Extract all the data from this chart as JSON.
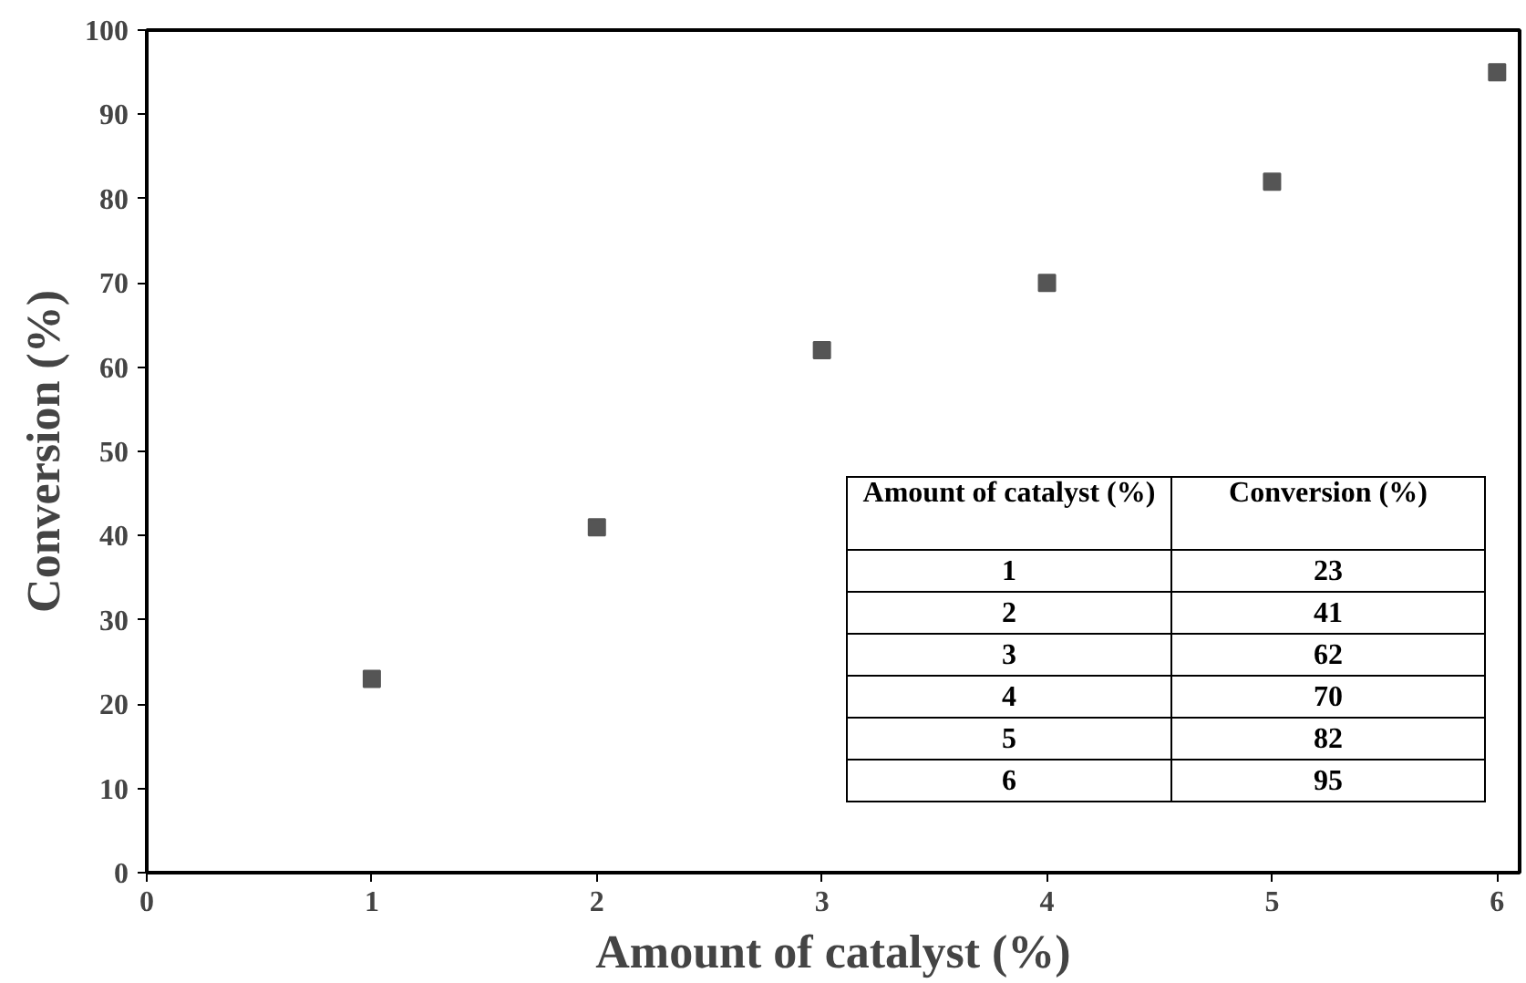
{
  "chart_data": {
    "type": "scatter",
    "xlabel": "Amount of catalyst (%)",
    "ylabel": "Conversion (%)",
    "x": [
      1,
      2,
      3,
      4,
      5,
      6
    ],
    "values": [
      23,
      41,
      62,
      70,
      82,
      95
    ],
    "color": "#555555",
    "marker": "square",
    "xlim": [
      0,
      6.1
    ],
    "ylim": [
      0,
      100
    ],
    "xticks": [
      0,
      1,
      2,
      3,
      4,
      5,
      6
    ],
    "yticks": [
      0,
      10,
      20,
      30,
      40,
      50,
      60,
      70,
      80,
      90,
      100
    ],
    "grid": false,
    "annotations": [
      "Amount of catalyst (%)",
      "Conversion (%)",
      "1",
      "23",
      "2",
      "41",
      "3",
      "62",
      "4",
      "70",
      "5",
      "82",
      "6",
      "95"
    ]
  }
}
